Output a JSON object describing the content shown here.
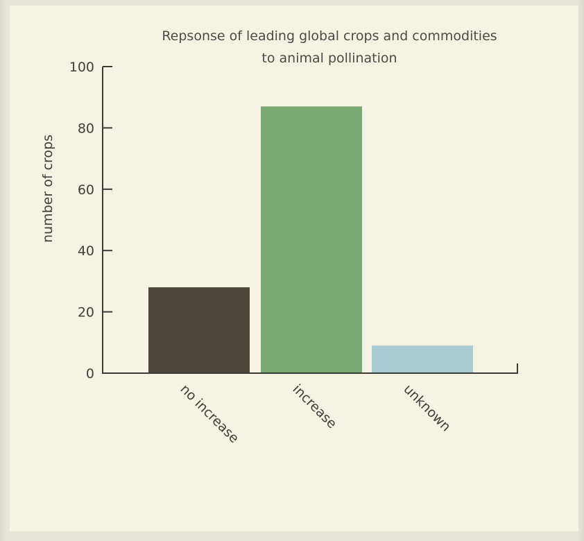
{
  "chart_data": {
    "type": "bar",
    "title_lines": [
      "Repsonse of leading global crops and commodities",
      "to animal pollination"
    ],
    "xlabel": "",
    "ylabel": "number of crops",
    "categories": [
      "no increase",
      "increase",
      "unknown"
    ],
    "values": [
      28,
      87,
      9
    ],
    "colors": [
      "#4b443b",
      "#7aa872",
      "#a9ccd3"
    ],
    "ylim": [
      0,
      100
    ],
    "yticks": [
      "0",
      "20",
      "40",
      "60",
      "80",
      "100"
    ],
    "grid": false
  }
}
